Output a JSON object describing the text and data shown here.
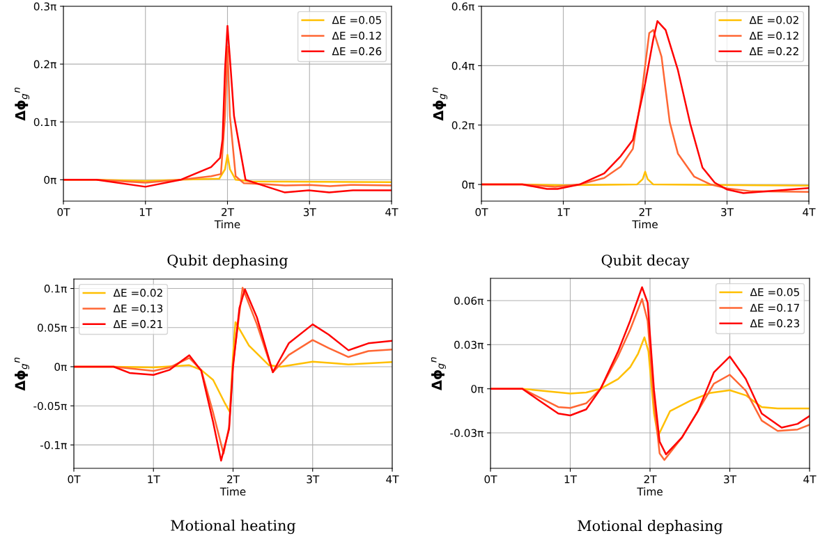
{
  "chart_data": [
    {
      "type": "line",
      "title": "Qubit dephasing",
      "xlabel": "Time",
      "ylabel": "Δϕ$_{g}$$^{n}$",
      "xlim": [
        0,
        4
      ],
      "xticks": [
        {
          "value": 0,
          "label": "0T"
        },
        {
          "value": 1,
          "label": "1T"
        },
        {
          "value": 2,
          "label": "2T"
        },
        {
          "value": 3,
          "label": "3T"
        },
        {
          "value": 4,
          "label": "4T"
        }
      ],
      "ylim": [
        -0.116,
        0.94248
      ],
      "yticks": [
        {
          "value": 0,
          "label": "0π"
        },
        {
          "value": 0.31416,
          "label": "0.1π"
        },
        {
          "value": 0.62832,
          "label": "0.2π"
        },
        {
          "value": 0.94248,
          "label": "0.3π"
        }
      ],
      "grid": true,
      "legend": "top right",
      "series": [
        {
          "name": "ΔE =0.05",
          "color": "#ffbf00",
          "x": [
            0,
            0.4,
            1,
            1.43,
            1.9,
            1.97,
            2.0,
            2.03,
            2.1,
            2.3,
            4
          ],
          "values": [
            0,
            0,
            -0.006,
            0,
            0.006,
            0.057,
            0.135,
            0.057,
            0,
            -0.009,
            -0.013
          ]
        },
        {
          "name": "ΔE =0.12",
          "color": "#ff6633",
          "x": [
            0,
            0.4,
            1,
            1.43,
            1.8,
            1.92,
            1.97,
            2.0,
            2.03,
            2.1,
            2.2,
            2.5,
            2.7,
            3.0,
            3.25,
            3.5,
            4
          ],
          "values": [
            0,
            0,
            -0.016,
            0,
            0.019,
            0.031,
            0.346,
            0.723,
            0.346,
            0.019,
            -0.019,
            -0.025,
            -0.031,
            -0.028,
            -0.035,
            -0.028,
            -0.031
          ]
        },
        {
          "name": "ΔE =0.26",
          "color": "#ff0000",
          "x": [
            0,
            0.4,
            1,
            1.43,
            1.8,
            1.91,
            1.94,
            1.97,
            2.0,
            2.04,
            2.08,
            2.22,
            2.39,
            2.7,
            2.99,
            3.24,
            3.53,
            4
          ],
          "values": [
            0,
            0,
            -0.038,
            0,
            0.069,
            0.119,
            0.22,
            0.597,
            0.836,
            0.597,
            0.346,
            0,
            -0.025,
            -0.069,
            -0.057,
            -0.069,
            -0.057,
            -0.057
          ]
        }
      ]
    },
    {
      "type": "line",
      "title": "Qubit decay",
      "xlabel": "Time",
      "ylabel": "Δϕ$_{g}$$^{n}$",
      "xlim": [
        0,
        4
      ],
      "xticks": [
        {
          "value": 0,
          "label": "0T"
        },
        {
          "value": 1,
          "label": "1T"
        },
        {
          "value": 2,
          "label": "2T"
        },
        {
          "value": 3,
          "label": "3T"
        },
        {
          "value": 4,
          "label": "4T"
        }
      ],
      "ylim": [
        -0.176,
        1.88496
      ],
      "yticks": [
        {
          "value": 0,
          "label": "0π"
        },
        {
          "value": 0.62832,
          "label": "0.2π"
        },
        {
          "value": 1.25664,
          "label": "0.4π"
        },
        {
          "value": 1.88496,
          "label": "0.6π"
        }
      ],
      "grid": true,
      "legend": "top right",
      "series": [
        {
          "name": "ΔE =0.02",
          "color": "#ffbf00",
          "x": [
            0,
            0.5,
            1,
            1.9,
            1.97,
            2.0,
            2.03,
            2.1,
            4
          ],
          "values": [
            0,
            0,
            -0.009,
            0,
            0.057,
            0.135,
            0.057,
            0,
            -0.013
          ]
        },
        {
          "name": "ΔE =0.12",
          "color": "#ff6633",
          "x": [
            0,
            0.5,
            0.9,
            1.2,
            1.5,
            1.7,
            1.85,
            1.95,
            2.05,
            2.1,
            2.2,
            2.3,
            2.4,
            2.6,
            2.8,
            3.0,
            3.3,
            4
          ],
          "values": [
            0,
            0,
            -0.025,
            0,
            0.069,
            0.188,
            0.377,
            0.911,
            1.602,
            1.634,
            1.351,
            0.66,
            0.327,
            0.082,
            0,
            -0.041,
            -0.072,
            -0.079
          ]
        },
        {
          "name": "ΔE =0.22",
          "color": "#ff0000",
          "x": [
            0,
            0.5,
            0.8,
            0.93,
            1.2,
            1.5,
            1.7,
            1.85,
            2.0,
            2.1,
            2.15,
            2.25,
            2.4,
            2.55,
            2.7,
            2.85,
            3.0,
            3.2,
            3.5,
            4
          ],
          "values": [
            0,
            0,
            -0.047,
            -0.047,
            0,
            0.118,
            0.298,
            0.471,
            1.068,
            1.539,
            1.728,
            1.634,
            1.21,
            0.644,
            0.179,
            0.019,
            -0.053,
            -0.091,
            -0.072,
            -0.038
          ]
        }
      ]
    },
    {
      "type": "line",
      "title": "Motional heating",
      "xlabel": "Time",
      "ylabel": "Δϕ$_{g}$$^{n}$",
      "xlim": [
        0,
        4
      ],
      "xticks": [
        {
          "value": 0,
          "label": "0T"
        },
        {
          "value": 1,
          "label": "1T"
        },
        {
          "value": 2,
          "label": "2T"
        },
        {
          "value": 3,
          "label": "3T"
        },
        {
          "value": 4,
          "label": "4T"
        }
      ],
      "ylim": [
        -0.408,
        0.352
      ],
      "yticks": [
        {
          "value": -0.31416,
          "label": "-0.1π"
        },
        {
          "value": -0.15708,
          "label": "-0.05π"
        },
        {
          "value": 0,
          "label": "0π"
        },
        {
          "value": 0.15708,
          "label": "0.05π"
        },
        {
          "value": 0.31416,
          "label": "0.1π"
        }
      ],
      "grid": true,
      "legend": "top left",
      "series": [
        {
          "name": "ΔE =0.02",
          "color": "#ffbf00",
          "x": [
            0,
            0.5,
            1,
            1.45,
            1.6,
            1.75,
            1.9,
            1.96,
            2.0,
            2.03,
            2.2,
            2.45,
            2.6,
            3.0,
            3.3,
            3.45,
            4
          ],
          "values": [
            0,
            0,
            -0.003,
            0.006,
            -0.013,
            -0.053,
            -0.148,
            -0.182,
            0.047,
            0.179,
            0.085,
            0.006,
            0,
            0.02,
            0.013,
            0.009,
            0.019
          ]
        },
        {
          "name": "ΔE =0.13",
          "color": "#ff6633",
          "x": [
            0,
            0.5,
            1,
            1.2,
            1.45,
            1.6,
            1.75,
            1.88,
            1.95,
            2.0,
            2.12,
            2.3,
            2.5,
            2.7,
            3.0,
            3.2,
            3.45,
            3.7,
            4
          ],
          "values": [
            0,
            0,
            -0.017,
            -0.003,
            0.035,
            -0.013,
            -0.185,
            -0.349,
            -0.242,
            0.013,
            0.317,
            0.17,
            -0.022,
            0.047,
            0.107,
            0.075,
            0.039,
            0.063,
            0.069
          ]
        },
        {
          "name": "ΔE =0.21",
          "color": "#ff0000",
          "x": [
            0,
            0.5,
            0.7,
            1,
            1.2,
            1.45,
            1.6,
            1.75,
            1.85,
            1.95,
            2.0,
            2.08,
            2.15,
            2.3,
            2.5,
            2.7,
            3.0,
            3.2,
            3.45,
            3.7,
            4
          ],
          "values": [
            0,
            0,
            -0.025,
            -0.033,
            -0.013,
            0.046,
            -0.016,
            -0.223,
            -0.377,
            -0.251,
            0,
            0.236,
            0.311,
            0.198,
            -0.022,
            0.094,
            0.17,
            0.129,
            0.066,
            0.094,
            0.104
          ]
        }
      ]
    },
    {
      "type": "line",
      "title": "Motional dephasing",
      "xlabel": "Time",
      "ylabel": "Δϕ$_{g}$$^{n}$",
      "xlim": [
        0,
        4
      ],
      "xticks": [
        {
          "value": 0,
          "label": "0T"
        },
        {
          "value": 1,
          "label": "1T"
        },
        {
          "value": 2,
          "label": "2T"
        },
        {
          "value": 3,
          "label": "3T"
        },
        {
          "value": 4,
          "label": "4T"
        }
      ],
      "ylim": [
        -0.17,
        0.236
      ],
      "yticks": [
        {
          "value": -0.094248,
          "label": "-0.03π"
        },
        {
          "value": 0,
          "label": "0π"
        },
        {
          "value": 0.094248,
          "label": "0.03π"
        },
        {
          "value": 0.188496,
          "label": "0.06π"
        }
      ],
      "grid": true,
      "legend": "top right",
      "series": [
        {
          "name": "ΔE =0.05",
          "color": "#ffbf00",
          "x": [
            0,
            0.4,
            1,
            1.2,
            1.38,
            1.6,
            1.75,
            1.85,
            1.93,
            1.98,
            2.05,
            2.1,
            2.25,
            2.5,
            2.75,
            3.0,
            3.2,
            3.4,
            3.6,
            4
          ],
          "values": [
            0,
            0,
            -0.01,
            -0.008,
            0,
            0.021,
            0.046,
            0.075,
            0.11,
            0.08,
            -0.053,
            -0.101,
            -0.048,
            -0.026,
            -0.009,
            -0.003,
            -0.014,
            -0.039,
            -0.042,
            -0.042
          ]
        },
        {
          "name": "ΔE =0.17",
          "color": "#ff6633",
          "x": [
            0,
            0.4,
            0.85,
            1,
            1.2,
            1.38,
            1.6,
            1.75,
            1.9,
            1.97,
            2.05,
            2.12,
            2.18,
            2.4,
            2.6,
            2.8,
            3.0,
            3.2,
            3.4,
            3.6,
            3.85,
            4
          ],
          "values": [
            0,
            0,
            -0.039,
            -0.041,
            -0.031,
            0,
            0.07,
            0.126,
            0.192,
            0.145,
            -0.028,
            -0.138,
            -0.152,
            -0.104,
            -0.048,
            0.011,
            0.03,
            -0.004,
            -0.068,
            -0.09,
            -0.087,
            -0.077
          ]
        },
        {
          "name": "ΔE =0.23",
          "color": "#ff0000",
          "x": [
            0,
            0.4,
            0.6,
            0.85,
            1,
            1.2,
            1.38,
            1.6,
            1.75,
            1.9,
            1.97,
            2.05,
            2.12,
            2.2,
            2.4,
            2.6,
            2.8,
            3.0,
            3.2,
            3.4,
            3.65,
            3.85,
            4
          ],
          "values": [
            0,
            0,
            -0.024,
            -0.053,
            -0.057,
            -0.044,
            0,
            0.08,
            0.145,
            0.217,
            0.184,
            -0.003,
            -0.113,
            -0.14,
            -0.104,
            -0.048,
            0.035,
            0.069,
            0.021,
            -0.053,
            -0.083,
            -0.075,
            -0.058
          ]
        }
      ]
    }
  ]
}
